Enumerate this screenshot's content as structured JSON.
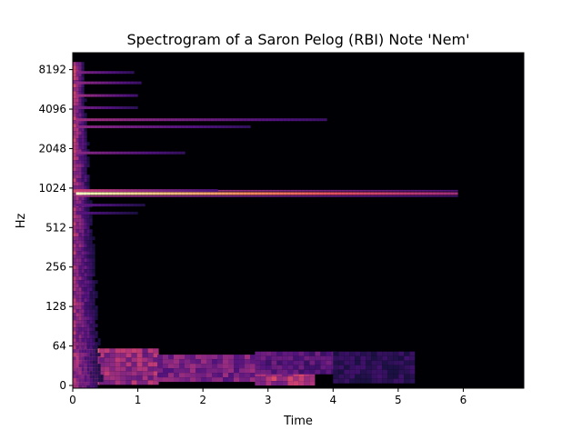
{
  "chart_data": {
    "type": "heatmap",
    "title": "Spectrogram of a Saron Pelog (RBI) Note 'Nem'",
    "xlabel": "Time",
    "ylabel": "Hz",
    "xlim": [
      0,
      6.93
    ],
    "y_scale": "symlog",
    "ylim": [
      0,
      11025
    ],
    "x_ticks": [
      {
        "value": 0,
        "label": "0"
      },
      {
        "value": 1,
        "label": "1"
      },
      {
        "value": 2,
        "label": "2"
      },
      {
        "value": 3,
        "label": "3"
      },
      {
        "value": 4,
        "label": "4"
      },
      {
        "value": 5,
        "label": "5"
      },
      {
        "value": 6,
        "label": "6"
      }
    ],
    "y_ticks": [
      {
        "value": 0,
        "label": "0"
      },
      {
        "value": 64,
        "label": "64"
      },
      {
        "value": 128,
        "label": "128"
      },
      {
        "value": 256,
        "label": "256"
      },
      {
        "value": 512,
        "label": "512"
      },
      {
        "value": 1024,
        "label": "1024"
      },
      {
        "value": 2048,
        "label": "2048"
      },
      {
        "value": 4096,
        "label": "4096"
      },
      {
        "value": 8192,
        "label": "8192"
      }
    ],
    "colormap": "magma",
    "background_color": "#000004",
    "harmonics": [
      {
        "freq": 930,
        "end_time": 5.9,
        "strength": 1.0
      },
      {
        "freq": 980,
        "end_time": 2.2,
        "strength": 0.55
      },
      {
        "freq": 3400,
        "end_time": 3.9,
        "strength": 0.45
      },
      {
        "freq": 3000,
        "end_time": 2.7,
        "strength": 0.4
      },
      {
        "freq": 1900,
        "end_time": 1.7,
        "strength": 0.4
      },
      {
        "freq": 5200,
        "end_time": 1.0,
        "strength": 0.45
      },
      {
        "freq": 6500,
        "end_time": 1.05,
        "strength": 0.42
      },
      {
        "freq": 7800,
        "end_time": 0.9,
        "strength": 0.38
      },
      {
        "freq": 4200,
        "end_time": 1.0,
        "strength": 0.35
      },
      {
        "freq": 760,
        "end_time": 1.1,
        "strength": 0.3
      },
      {
        "freq": 660,
        "end_time": 0.95,
        "strength": 0.28
      }
    ],
    "low_frequency_energy": [
      {
        "t0": 0.0,
        "t1": 0.4,
        "f0": 8,
        "f1": 60,
        "strength": 0.8
      },
      {
        "t0": 0.4,
        "t1": 1.3,
        "f0": 8,
        "f1": 60,
        "strength": 0.55
      },
      {
        "t0": 1.3,
        "t1": 2.8,
        "f0": 8,
        "f1": 50,
        "strength": 0.45
      },
      {
        "t0": 2.8,
        "t1": 3.7,
        "f0": 5,
        "f1": 22,
        "strength": 0.6
      },
      {
        "t0": 2.8,
        "t1": 4.0,
        "f0": 22,
        "f1": 55,
        "strength": 0.35
      },
      {
        "t0": 4.0,
        "t1": 5.2,
        "f0": 5,
        "f1": 55,
        "strength": 0.22
      }
    ],
    "onset_time": 0.05
  }
}
